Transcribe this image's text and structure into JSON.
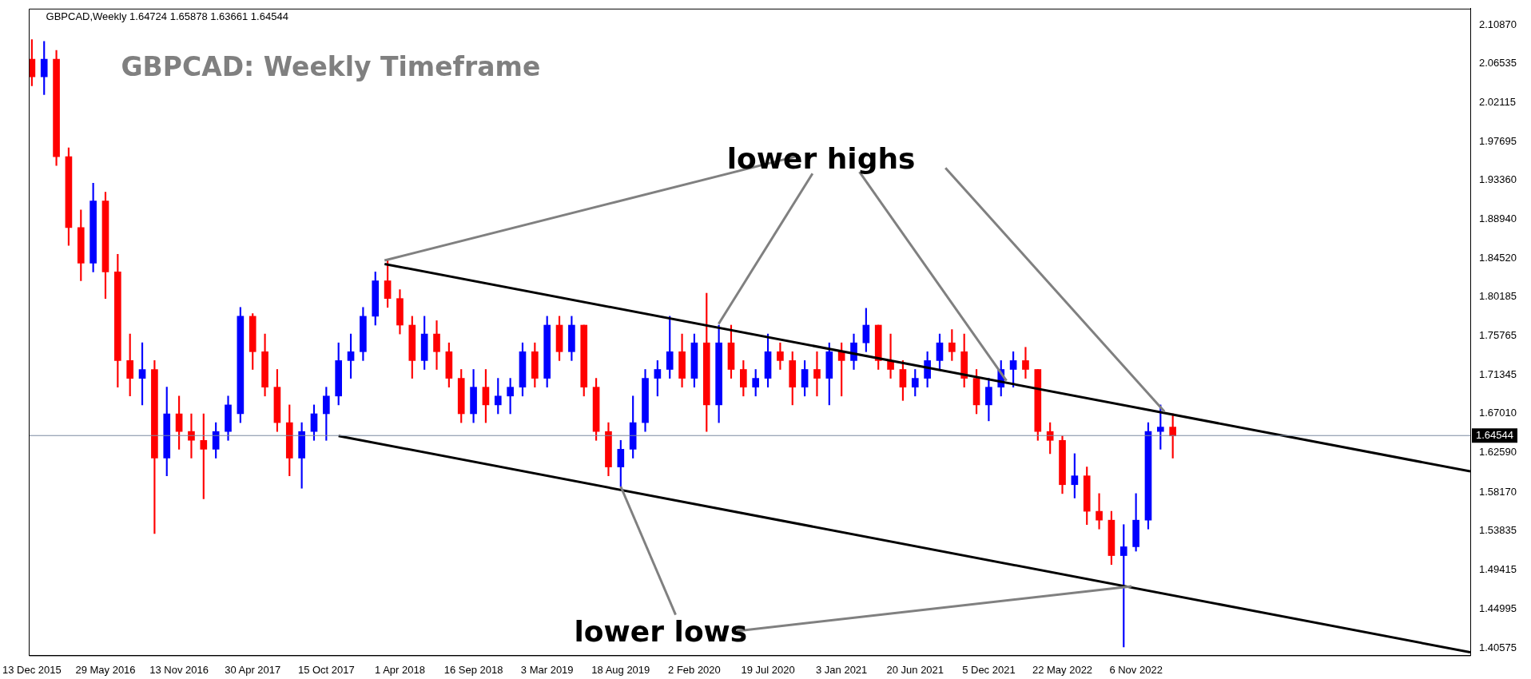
{
  "chart_data": {
    "type": "candlestick",
    "title": "GBPCAD: Weekly Timeframe",
    "subtitle": "GBPCAD,Weekly  1.64724 1.65878 1.63661 1.64544",
    "annotations": [
      {
        "text": "lower highs",
        "x": "2018-02-25",
        "y": 1.843
      },
      {
        "text": "lower lows",
        "x": "2019-08-18",
        "y": 1.588
      }
    ],
    "x": [
      "2015-12-13",
      "2016-01-10",
      "2016-02-07",
      "2016-03-06",
      "2016-04-03",
      "2016-05-01",
      "2016-05-29",
      "2016-06-26",
      "2016-07-24",
      "2016-08-21",
      "2016-09-18",
      "2016-10-16",
      "2016-11-13",
      "2016-12-11",
      "2017-01-08",
      "2017-02-05",
      "2017-03-05",
      "2017-04-02",
      "2017-04-30",
      "2017-05-28",
      "2017-06-25",
      "2017-07-23",
      "2017-08-20",
      "2017-09-17",
      "2017-10-15",
      "2017-11-12",
      "2017-12-10",
      "2018-01-07",
      "2018-02-04",
      "2018-03-04",
      "2018-04-01",
      "2018-04-29",
      "2018-05-27",
      "2018-06-24",
      "2018-07-22",
      "2018-08-19",
      "2018-09-16",
      "2018-10-14",
      "2018-11-11",
      "2018-12-09",
      "2019-01-06",
      "2019-02-03",
      "2019-03-03",
      "2019-03-31",
      "2019-04-28",
      "2019-05-26",
      "2019-06-23",
      "2019-07-21",
      "2019-08-18",
      "2019-09-15",
      "2019-10-13",
      "2019-11-10",
      "2019-12-08",
      "2020-01-05",
      "2020-02-02",
      "2020-03-01",
      "2020-03-29",
      "2020-04-26",
      "2020-05-24",
      "2020-06-21",
      "2020-07-19",
      "2020-08-16",
      "2020-09-13",
      "2020-10-11",
      "2020-11-08",
      "2020-12-06",
      "2021-01-03",
      "2021-01-31",
      "2021-02-28",
      "2021-03-28",
      "2021-04-25",
      "2021-05-23",
      "2021-06-20",
      "2021-07-18",
      "2021-08-15",
      "2021-09-12",
      "2021-10-10",
      "2021-11-07",
      "2021-12-05",
      "2022-01-02",
      "2022-01-30",
      "2022-02-27",
      "2022-03-27",
      "2022-04-24",
      "2022-05-22",
      "2022-06-19",
      "2022-07-17",
      "2022-08-14",
      "2022-09-11",
      "2022-10-09",
      "2022-11-06",
      "2022-12-04",
      "2023-01-01",
      "2023-01-29"
    ],
    "ohlc": [
      [
        2.07,
        2.092,
        2.04,
        2.05
      ],
      [
        2.05,
        2.09,
        2.03,
        2.07
      ],
      [
        2.07,
        2.08,
        1.95,
        1.96
      ],
      [
        1.96,
        1.97,
        1.86,
        1.88
      ],
      [
        1.88,
        1.9,
        1.82,
        1.84
      ],
      [
        1.84,
        1.93,
        1.83,
        1.91
      ],
      [
        1.91,
        1.92,
        1.8,
        1.83
      ],
      [
        1.83,
        1.85,
        1.7,
        1.73
      ],
      [
        1.73,
        1.76,
        1.69,
        1.71
      ],
      [
        1.71,
        1.75,
        1.68,
        1.72
      ],
      [
        1.72,
        1.73,
        1.535,
        1.62
      ],
      [
        1.62,
        1.7,
        1.6,
        1.67
      ],
      [
        1.67,
        1.69,
        1.63,
        1.65
      ],
      [
        1.65,
        1.67,
        1.62,
        1.64
      ],
      [
        1.64,
        1.67,
        1.574,
        1.63
      ],
      [
        1.63,
        1.66,
        1.62,
        1.65
      ],
      [
        1.65,
        1.69,
        1.64,
        1.68
      ],
      [
        1.67,
        1.79,
        1.66,
        1.78
      ],
      [
        1.78,
        1.783,
        1.72,
        1.74
      ],
      [
        1.74,
        1.76,
        1.69,
        1.7
      ],
      [
        1.7,
        1.72,
        1.65,
        1.66
      ],
      [
        1.66,
        1.68,
        1.6,
        1.62
      ],
      [
        1.62,
        1.66,
        1.586,
        1.65
      ],
      [
        1.65,
        1.68,
        1.64,
        1.67
      ],
      [
        1.67,
        1.7,
        1.64,
        1.69
      ],
      [
        1.69,
        1.75,
        1.68,
        1.73
      ],
      [
        1.73,
        1.76,
        1.71,
        1.74
      ],
      [
        1.74,
        1.79,
        1.73,
        1.78
      ],
      [
        1.78,
        1.83,
        1.77,
        1.82
      ],
      [
        1.82,
        1.843,
        1.79,
        1.8
      ],
      [
        1.8,
        1.81,
        1.76,
        1.77
      ],
      [
        1.77,
        1.78,
        1.71,
        1.73
      ],
      [
        1.73,
        1.78,
        1.72,
        1.76
      ],
      [
        1.76,
        1.775,
        1.72,
        1.74
      ],
      [
        1.74,
        1.75,
        1.7,
        1.71
      ],
      [
        1.71,
        1.72,
        1.66,
        1.67
      ],
      [
        1.67,
        1.72,
        1.66,
        1.7
      ],
      [
        1.7,
        1.72,
        1.66,
        1.68
      ],
      [
        1.68,
        1.71,
        1.67,
        1.69
      ],
      [
        1.69,
        1.71,
        1.67,
        1.7
      ],
      [
        1.7,
        1.75,
        1.69,
        1.74
      ],
      [
        1.74,
        1.75,
        1.7,
        1.71
      ],
      [
        1.71,
        1.78,
        1.7,
        1.77
      ],
      [
        1.77,
        1.78,
        1.73,
        1.74
      ],
      [
        1.74,
        1.78,
        1.73,
        1.77
      ],
      [
        1.77,
        1.77,
        1.69,
        1.7
      ],
      [
        1.7,
        1.71,
        1.64,
        1.65
      ],
      [
        1.65,
        1.66,
        1.6,
        1.61
      ],
      [
        1.61,
        1.64,
        1.588,
        1.63
      ],
      [
        1.63,
        1.69,
        1.62,
        1.66
      ],
      [
        1.66,
        1.72,
        1.65,
        1.71
      ],
      [
        1.71,
        1.73,
        1.69,
        1.72
      ],
      [
        1.72,
        1.78,
        1.71,
        1.74
      ],
      [
        1.74,
        1.76,
        1.7,
        1.71
      ],
      [
        1.71,
        1.76,
        1.7,
        1.75
      ],
      [
        1.75,
        1.806,
        1.65,
        1.68
      ],
      [
        1.68,
        1.77,
        1.66,
        1.75
      ],
      [
        1.75,
        1.77,
        1.71,
        1.72
      ],
      [
        1.72,
        1.73,
        1.69,
        1.7
      ],
      [
        1.7,
        1.72,
        1.69,
        1.71
      ],
      [
        1.71,
        1.76,
        1.7,
        1.74
      ],
      [
        1.74,
        1.75,
        1.72,
        1.73
      ],
      [
        1.73,
        1.74,
        1.68,
        1.7
      ],
      [
        1.7,
        1.73,
        1.69,
        1.72
      ],
      [
        1.72,
        1.74,
        1.69,
        1.71
      ],
      [
        1.71,
        1.75,
        1.68,
        1.74
      ],
      [
        1.74,
        1.75,
        1.69,
        1.73
      ],
      [
        1.73,
        1.76,
        1.72,
        1.75
      ],
      [
        1.75,
        1.789,
        1.74,
        1.77
      ],
      [
        1.77,
        1.77,
        1.72,
        1.73
      ],
      [
        1.73,
        1.76,
        1.71,
        1.72
      ],
      [
        1.72,
        1.73,
        1.685,
        1.7
      ],
      [
        1.7,
        1.72,
        1.69,
        1.71
      ],
      [
        1.71,
        1.74,
        1.7,
        1.73
      ],
      [
        1.73,
        1.76,
        1.72,
        1.75
      ],
      [
        1.75,
        1.765,
        1.73,
        1.74
      ],
      [
        1.74,
        1.76,
        1.7,
        1.71
      ],
      [
        1.71,
        1.72,
        1.67,
        1.68
      ],
      [
        1.68,
        1.71,
        1.662,
        1.7
      ],
      [
        1.7,
        1.73,
        1.69,
        1.72
      ],
      [
        1.72,
        1.74,
        1.7,
        1.73
      ],
      [
        1.73,
        1.745,
        1.71,
        1.72
      ],
      [
        1.72,
        1.72,
        1.64,
        1.65
      ],
      [
        1.65,
        1.66,
        1.625,
        1.64
      ],
      [
        1.64,
        1.645,
        1.58,
        1.59
      ],
      [
        1.59,
        1.625,
        1.575,
        1.6
      ],
      [
        1.6,
        1.61,
        1.545,
        1.56
      ],
      [
        1.56,
        1.58,
        1.54,
        1.55
      ],
      [
        1.55,
        1.56,
        1.5,
        1.51
      ],
      [
        1.51,
        1.545,
        1.407,
        1.52
      ],
      [
        1.52,
        1.58,
        1.515,
        1.55
      ],
      [
        1.55,
        1.66,
        1.54,
        1.65
      ],
      [
        1.65,
        1.68,
        1.63,
        1.655
      ],
      [
        1.655,
        1.67,
        1.62,
        1.645
      ]
    ],
    "colors": [
      "#ff0000",
      "#0000ff",
      "#ff0000",
      "#ff0000",
      "#ff0000",
      "#0000ff",
      "#ff0000",
      "#ff0000",
      "#ff0000",
      "#0000ff",
      "#ff0000",
      "#0000ff",
      "#ff0000",
      "#ff0000",
      "#ff0000",
      "#0000ff",
      "#0000ff",
      "#0000ff",
      "#ff0000",
      "#ff0000",
      "#ff0000",
      "#ff0000",
      "#0000ff",
      "#0000ff",
      "#0000ff",
      "#0000ff",
      "#0000ff",
      "#0000ff",
      "#0000ff",
      "#ff0000",
      "#ff0000",
      "#ff0000",
      "#0000ff",
      "#ff0000",
      "#ff0000",
      "#ff0000",
      "#0000ff",
      "#ff0000",
      "#0000ff",
      "#0000ff",
      "#0000ff",
      "#ff0000",
      "#0000ff",
      "#ff0000",
      "#0000ff",
      "#ff0000",
      "#ff0000",
      "#ff0000",
      "#0000ff",
      "#0000ff",
      "#0000ff",
      "#0000ff",
      "#0000ff",
      "#ff0000",
      "#0000ff",
      "#ff0000",
      "#0000ff",
      "#ff0000",
      "#ff0000",
      "#0000ff",
      "#0000ff",
      "#ff0000",
      "#ff0000",
      "#0000ff",
      "#ff0000",
      "#0000ff",
      "#ff0000",
      "#0000ff",
      "#0000ff",
      "#ff0000",
      "#ff0000",
      "#ff0000",
      "#0000ff",
      "#0000ff",
      "#0000ff",
      "#ff0000",
      "#ff0000",
      "#ff0000",
      "#0000ff",
      "#0000ff",
      "#0000ff",
      "#ff0000",
      "#ff0000",
      "#ff0000",
      "#ff0000",
      "#0000ff",
      "#ff0000",
      "#ff0000",
      "#ff0000",
      "#0000ff",
      "#0000ff",
      "#0000ff",
      "#0000ff",
      "#ff0000"
    ],
    "series": [
      {
        "type": "line",
        "color": "#000000",
        "x": [
          "2018-02-25",
          "2024-12-08"
        ],
        "values": [
          1.839,
          1.605
        ]
      },
      {
        "type": "line",
        "color": "#000000",
        "x": [
          "2017-11-12",
          "2024-12-08"
        ],
        "values": [
          1.645,
          1.401
        ]
      }
    ],
    "xlim": [
      "2015-12-06",
      "2024-12-08"
    ],
    "ylim": [
      1.3975,
      2.127
    ],
    "xticks": [
      {
        "value": "2015-12-13",
        "label": "13 Dec 2015"
      },
      {
        "value": "2016-05-29",
        "label": "29 May 2016"
      },
      {
        "value": "2016-11-13",
        "label": "13 Nov 2016"
      },
      {
        "value": "2017-04-30",
        "label": "30 Apr 2017"
      },
      {
        "value": "2017-10-15",
        "label": "15 Oct 2017"
      },
      {
        "value": "2018-04-01",
        "label": "1 Apr 2018"
      },
      {
        "value": "2018-09-16",
        "label": "16 Sep 2018"
      },
      {
        "value": "2019-03-03",
        "label": "3 Mar 2019"
      },
      {
        "value": "2019-08-18",
        "label": "18 Aug 2019"
      },
      {
        "value": "2020-02-02",
        "label": "2 Feb 2020"
      },
      {
        "value": "2020-07-19",
        "label": "19 Jul 2020"
      },
      {
        "value": "2021-01-03",
        "label": "3 Jan 2021"
      },
      {
        "value": "2021-06-20",
        "label": "20 Jun 2021"
      },
      {
        "value": "2021-12-05",
        "label": "5 Dec 2021"
      },
      {
        "value": "2022-05-22",
        "label": "22 May 2022"
      },
      {
        "value": "2022-11-06",
        "label": "6 Nov 2022"
      }
    ],
    "yticks": [
      {
        "value": 2.1087,
        "label": "2.10870"
      },
      {
        "value": 2.06535,
        "label": "2.06535"
      },
      {
        "value": 2.02115,
        "label": "2.02115"
      },
      {
        "value": 1.97695,
        "label": "1.97695"
      },
      {
        "value": 1.9336,
        "label": "1.93360"
      },
      {
        "value": 1.8894,
        "label": "1.88940"
      },
      {
        "value": 1.8452,
        "label": "1.84520"
      },
      {
        "value": 1.80185,
        "label": "1.80185"
      },
      {
        "value": 1.75765,
        "label": "1.75765"
      },
      {
        "value": 1.71345,
        "label": "1.71345"
      },
      {
        "value": 1.6701,
        "label": "1.67010"
      },
      {
        "value": 1.6259,
        "label": "1.62590"
      },
      {
        "value": 1.5817,
        "label": "1.58170"
      },
      {
        "value": 1.53835,
        "label": "1.53835"
      },
      {
        "value": 1.49415,
        "label": "1.49415"
      },
      {
        "value": 1.44995,
        "label": "1.44995"
      },
      {
        "value": 1.40575,
        "label": "1.40575"
      }
    ],
    "ref_lines": [
      {
        "axis": "y",
        "value": 1.64544,
        "label": "1.64544",
        "color": "#7b8aa0"
      }
    ],
    "grid": false,
    "legend": false
  }
}
